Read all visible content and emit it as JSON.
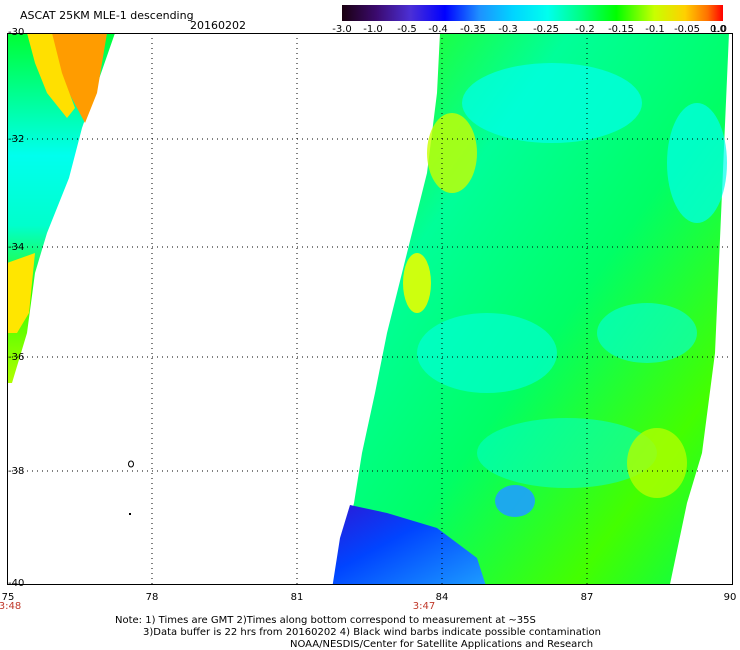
{
  "header": {
    "title": "ASCAT 25KM MLE-1 descending",
    "date": "20160202"
  },
  "colorbar": {
    "labels": [
      "-3.0",
      "-1.0",
      "-0.5",
      "-0.4",
      "-0.35",
      "-0.3",
      "-0.25",
      "-0.2",
      "-0.15",
      "-0.1",
      "-0.05",
      "0.0",
      "1.0"
    ],
    "colors": [
      "#1a0010",
      "#4b0082",
      "#2a2ad8",
      "#0000ff",
      "#1f78ff",
      "#00bfff",
      "#00ffff",
      "#00ff99",
      "#00ff00",
      "#7fff00",
      "#ffff00",
      "#ff8c00",
      "#ff0000"
    ]
  },
  "axes": {
    "lat_labels": [
      "-30",
      "-32",
      "-34",
      "-36",
      "-38",
      "-40"
    ],
    "lon_labels": [
      "75",
      "78",
      "81",
      "84",
      "87",
      "90"
    ]
  },
  "times": [
    "3:48",
    "3:47"
  ],
  "notes": [
    "Note: 1) Times are GMT 2)Times along bottom correspond to measurement at ~35S",
    "3)Data buffer is 22 hrs from 20160202 4) Black wind barbs indicate possible contamination",
    "NOAA/NESDIS/Center for Satellite Applications and Research"
  ]
}
